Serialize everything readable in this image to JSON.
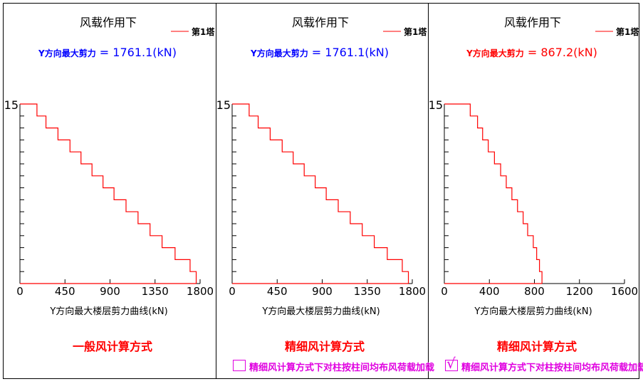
{
  "chart_data": [
    {
      "type": "line",
      "title": "风载作用下",
      "subtitle_label": "Y方向最大剪力",
      "subtitle_value": "1761.1(kN)",
      "subtitle_color": "#0000ff",
      "legend": "第1塔",
      "line_color": "#ff0000",
      "xlabel": "Y方向最大楼层剪力曲线(kN)",
      "x_ticks": [
        0,
        450,
        900,
        1350,
        1800
      ],
      "xlim": [
        0,
        1800
      ],
      "ylim": [
        0,
        15
      ],
      "y_tick_label": "15",
      "shear_by_story": [
        1761.1,
        1700,
        1550,
        1420,
        1300,
        1180,
        1060,
        940,
        830,
        720,
        610,
        500,
        380,
        260,
        170
      ],
      "method_label": "一般风计算方式",
      "checkbox": null
    },
    {
      "type": "line",
      "title": "风载作用下",
      "subtitle_label": "Y方向最大剪力",
      "subtitle_value": "1761.1(kN)",
      "subtitle_color": "#0000ff",
      "legend": "第1塔",
      "line_color": "#ff0000",
      "xlabel": "Y方向最大楼层剪力曲线(kN)",
      "x_ticks": [
        0,
        450,
        900,
        1350,
        1800
      ],
      "xlim": [
        0,
        1800
      ],
      "ylim": [
        0,
        15
      ],
      "y_tick_label": "15",
      "shear_by_story": [
        1761.1,
        1700,
        1550,
        1420,
        1300,
        1180,
        1060,
        940,
        830,
        720,
        610,
        500,
        380,
        260,
        170
      ],
      "method_label": "精细风计算方式",
      "checkbox": {
        "label": "精细风计算方式下对柱按柱间均布风荷载加载",
        "checked": false
      }
    },
    {
      "type": "line",
      "title": "风载作用下",
      "subtitle_label": "Y方向最大剪力",
      "subtitle_value": "867.2(kN)",
      "subtitle_color": "#ff0000",
      "legend": "第1塔",
      "line_color": "#ff0000",
      "xlabel": "Y方向最大楼层剪力曲线(kN)",
      "x_ticks": [
        0,
        400,
        800,
        1200,
        1600
      ],
      "xlim": [
        0,
        1600
      ],
      "ylim": [
        0,
        15
      ],
      "y_tick_label": "15",
      "shear_by_story": [
        867.2,
        845,
        820,
        790,
        740,
        700,
        650,
        600,
        550,
        500,
        445,
        390,
        340,
        295,
        230
      ],
      "method_label": "精细风计算方式",
      "checkbox": {
        "label": "精细风计算方式下对柱按柱间均布风荷载加载",
        "checked": true
      }
    }
  ]
}
